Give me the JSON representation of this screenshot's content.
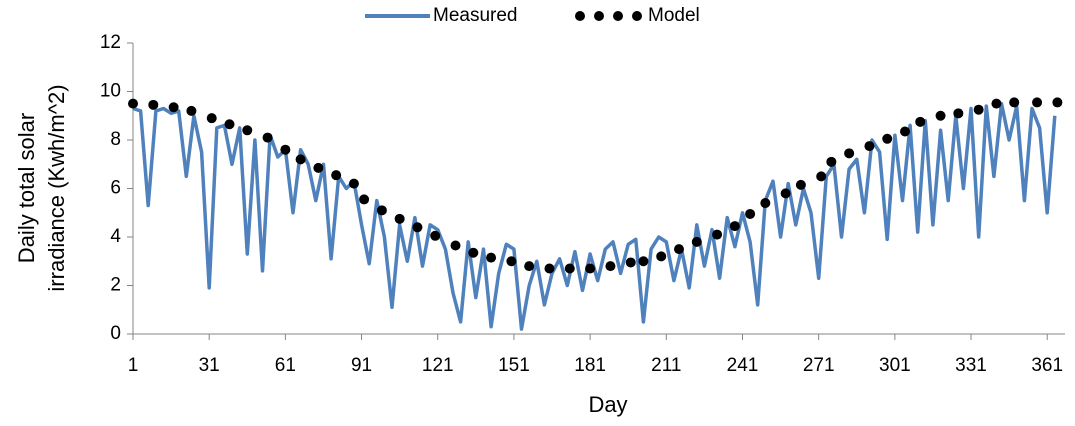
{
  "chart_data": {
    "type": "line",
    "y_label_lines": [
      "Daily total solar",
      "irradiance (Kwh/m^2)"
    ],
    "x_label": "Day",
    "xlim": [
      1,
      368
    ],
    "xticks": [
      1,
      31,
      61,
      91,
      121,
      151,
      181,
      211,
      241,
      271,
      301,
      331,
      361
    ],
    "ylim": [
      0,
      12
    ],
    "yticks": [
      0,
      2,
      4,
      6,
      8,
      10,
      12
    ],
    "grid": false,
    "legend": "top",
    "series": [
      {
        "name": "Measured",
        "color": "#4f81bd",
        "style": "line",
        "x": [
          1,
          4,
          7,
          10,
          13,
          16,
          19,
          22,
          25,
          28,
          31,
          34,
          37,
          40,
          43,
          46,
          49,
          52,
          55,
          58,
          61,
          64,
          67,
          70,
          73,
          76,
          79,
          82,
          85,
          88,
          91,
          94,
          97,
          100,
          103,
          106,
          109,
          112,
          115,
          118,
          121,
          124,
          127,
          130,
          133,
          136,
          139,
          142,
          145,
          148,
          151,
          154,
          157,
          160,
          163,
          166,
          169,
          172,
          175,
          178,
          181,
          184,
          187,
          190,
          193,
          196,
          199,
          202,
          205,
          208,
          211,
          214,
          217,
          220,
          223,
          226,
          229,
          232,
          235,
          238,
          241,
          244,
          247,
          250,
          253,
          256,
          259,
          262,
          265,
          268,
          271,
          274,
          277,
          280,
          283,
          286,
          289,
          292,
          295,
          298,
          301,
          304,
          307,
          310,
          313,
          316,
          319,
          322,
          325,
          328,
          331,
          334,
          337,
          340,
          343,
          346,
          349,
          352,
          355,
          358,
          361,
          364
        ],
        "values": [
          9.3,
          9.2,
          5.3,
          9.2,
          9.3,
          9.1,
          9.2,
          6.5,
          9.0,
          7.5,
          1.9,
          8.5,
          8.6,
          7.0,
          8.5,
          3.3,
          8.0,
          2.6,
          8.2,
          7.3,
          7.6,
          5.0,
          7.6,
          7.0,
          5.5,
          7.0,
          3.1,
          6.5,
          6.0,
          6.3,
          4.5,
          2.9,
          5.5,
          4.0,
          1.1,
          4.5,
          3.0,
          4.8,
          2.8,
          4.5,
          4.3,
          3.5,
          1.7,
          0.5,
          3.8,
          1.5,
          3.5,
          0.3,
          2.5,
          3.7,
          3.5,
          0.2,
          2.0,
          3.0,
          1.2,
          2.5,
          3.1,
          2.0,
          3.4,
          1.8,
          3.3,
          2.2,
          3.5,
          3.8,
          2.5,
          3.7,
          3.9,
          0.5,
          3.5,
          4.0,
          3.8,
          2.2,
          3.5,
          1.9,
          4.5,
          2.8,
          4.3,
          2.3,
          4.8,
          3.6,
          5.0,
          3.8,
          1.2,
          5.5,
          6.3,
          4.0,
          6.2,
          4.5,
          6.0,
          5.0,
          2.3,
          6.5,
          7.0,
          4.0,
          6.8,
          7.2,
          5.0,
          8.0,
          7.5,
          3.9,
          8.2,
          5.5,
          8.6,
          4.2,
          8.8,
          4.5,
          8.4,
          5.5,
          9.0,
          6.0,
          9.3,
          4.0,
          9.4,
          6.5,
          9.5,
          8.0,
          9.4,
          5.5,
          9.3,
          8.5,
          5.0,
          9.0
        ]
      },
      {
        "name": "Model",
        "color": "#000000",
        "style": "dots",
        "x": [
          1,
          9,
          17,
          24,
          32,
          39,
          46,
          54,
          61,
          67,
          74,
          81,
          88,
          92,
          99,
          106,
          113,
          120,
          128,
          135,
          142,
          150,
          157,
          165,
          173,
          181,
          189,
          197,
          202,
          209,
          216,
          223,
          231,
          238,
          244,
          250,
          258,
          264,
          272,
          276,
          283,
          291,
          298,
          305,
          311,
          319,
          326,
          334,
          341,
          348,
          357,
          365
        ],
        "values": [
          9.5,
          9.45,
          9.35,
          9.2,
          8.9,
          8.65,
          8.4,
          8.1,
          7.6,
          7.2,
          6.85,
          6.55,
          6.2,
          5.55,
          5.1,
          4.75,
          4.4,
          4.05,
          3.65,
          3.35,
          3.15,
          3.0,
          2.8,
          2.7,
          2.7,
          2.7,
          2.8,
          2.95,
          3.0,
          3.2,
          3.5,
          3.8,
          4.1,
          4.45,
          4.95,
          5.4,
          5.8,
          6.15,
          6.5,
          7.1,
          7.45,
          7.75,
          8.05,
          8.35,
          8.75,
          9.0,
          9.1,
          9.25,
          9.5,
          9.55,
          9.55,
          9.55
        ]
      }
    ]
  }
}
